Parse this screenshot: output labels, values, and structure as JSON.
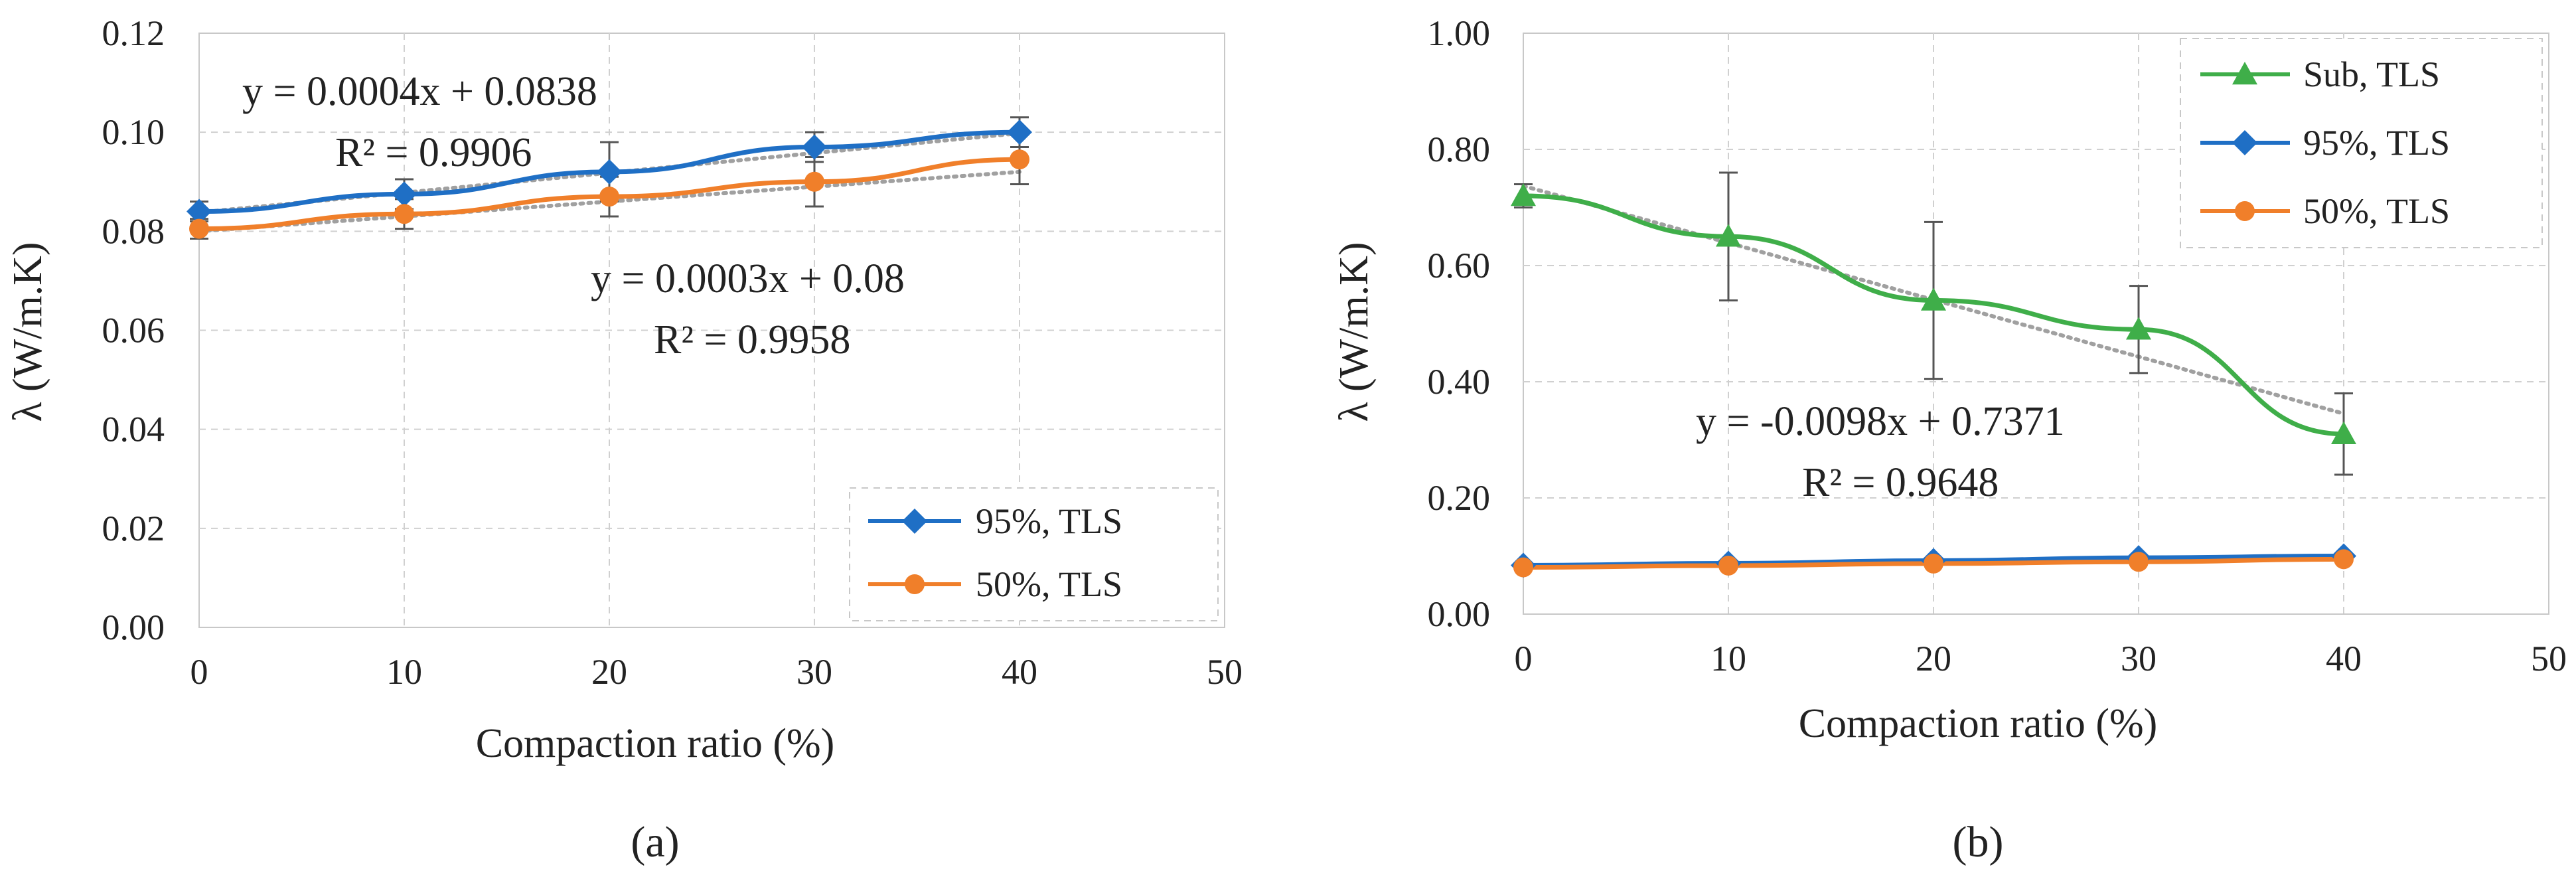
{
  "chart_data": [
    {
      "type": "line",
      "panel_label": "(a)",
      "xlabel": "Compaction ratio (%)",
      "ylabel": "λ (W/m.K)",
      "xlim": [
        0,
        50
      ],
      "ylim": [
        0,
        0.12
      ],
      "x_ticks": [
        "0",
        "10",
        "20",
        "30",
        "40",
        "50"
      ],
      "y_ticks": [
        "0.00",
        "0.02",
        "0.04",
        "0.06",
        "0.08",
        "0.10",
        "0.12"
      ],
      "grid": true,
      "legend_position": "bottom-right",
      "series": [
        {
          "name": "95%, TLS",
          "color": "#1f6fc5",
          "marker": "diamond",
          "x": [
            0,
            10,
            20,
            30,
            40
          ],
          "y": [
            0.084,
            0.0875,
            0.092,
            0.097,
            0.1
          ],
          "err": [
            0.002,
            0.003,
            0.006,
            0.003,
            0.003
          ],
          "trend": {
            "equation": "y = 0.0004x + 0.0838",
            "r2": "R² = 0.9906",
            "slope": 0.0004,
            "intercept": 0.0838
          }
        },
        {
          "name": "50%, TLS",
          "color": "#f07f2a",
          "marker": "circle",
          "x": [
            0,
            10,
            20,
            30,
            40
          ],
          "y": [
            0.0805,
            0.0835,
            0.087,
            0.09,
            0.0945
          ],
          "err": [
            0.002,
            0.003,
            0.004,
            0.005,
            0.005
          ],
          "trend": {
            "equation": "y = 0.0003x + 0.08",
            "r2": "R² = 0.9958",
            "slope": 0.0003,
            "intercept": 0.08
          }
        }
      ]
    },
    {
      "type": "line",
      "panel_label": "(b)",
      "xlabel": "Compaction ratio (%)",
      "ylabel": "λ (W/m.K)",
      "xlim": [
        0,
        50
      ],
      "ylim": [
        0,
        1.0
      ],
      "x_ticks": [
        "0",
        "10",
        "20",
        "30",
        "40",
        "50"
      ],
      "y_ticks": [
        "0.00",
        "0.20",
        "0.40",
        "0.60",
        "0.80",
        "1.00"
      ],
      "grid": true,
      "legend_position": "top-right",
      "series": [
        {
          "name": "Sub, TLS",
          "color": "#3fae49",
          "marker": "triangle",
          "x": [
            0,
            10,
            20,
            30,
            40
          ],
          "y": [
            0.72,
            0.65,
            0.54,
            0.49,
            0.31
          ],
          "err": [
            0.02,
            0.11,
            0.135,
            0.075,
            0.07
          ],
          "trend": {
            "equation": "y = -0.0098x + 0.7371",
            "r2": "R² = 0.9648",
            "slope": -0.0098,
            "intercept": 0.7371
          }
        },
        {
          "name": "95%, TLS",
          "color": "#1f6fc5",
          "marker": "diamond",
          "x": [
            0,
            10,
            20,
            30,
            40
          ],
          "y": [
            0.084,
            0.0875,
            0.092,
            0.097,
            0.1
          ],
          "err": [
            0,
            0,
            0,
            0,
            0
          ]
        },
        {
          "name": "50%, TLS",
          "color": "#f07f2a",
          "marker": "circle",
          "x": [
            0,
            10,
            20,
            30,
            40
          ],
          "y": [
            0.0805,
            0.0835,
            0.087,
            0.09,
            0.0945
          ],
          "err": [
            0,
            0,
            0,
            0,
            0
          ]
        }
      ]
    }
  ]
}
